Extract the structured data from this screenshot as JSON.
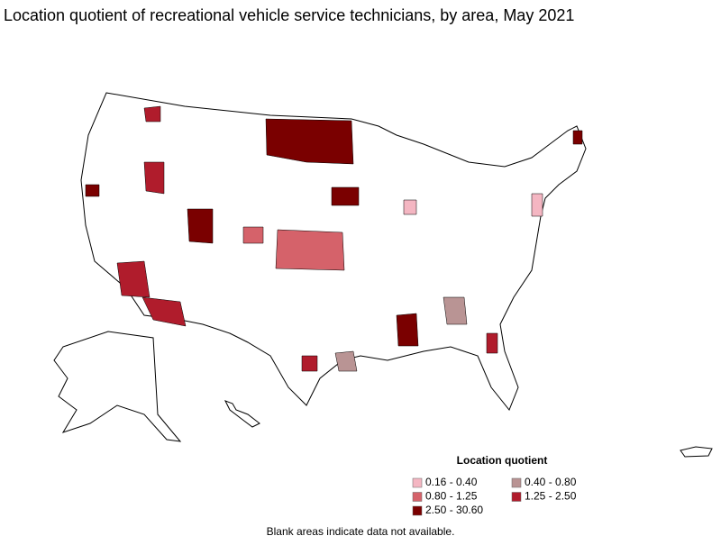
{
  "title": "Location quotient of recreational vehicle service technicians, by area, May 2021",
  "legend": {
    "title": "Location quotient",
    "items": [
      {
        "label": "0.16 - 0.40",
        "color": "#f4b6c2"
      },
      {
        "label": "0.40 - 0.80",
        "color": "#b99494"
      },
      {
        "label": "0.80 - 1.25",
        "color": "#d5626a"
      },
      {
        "label": "1.25 - 2.50",
        "color": "#b01c2c"
      },
      {
        "label": "2.50 - 30.60",
        "color": "#7a0000"
      }
    ]
  },
  "footnote": "Blank areas indicate data not available."
}
